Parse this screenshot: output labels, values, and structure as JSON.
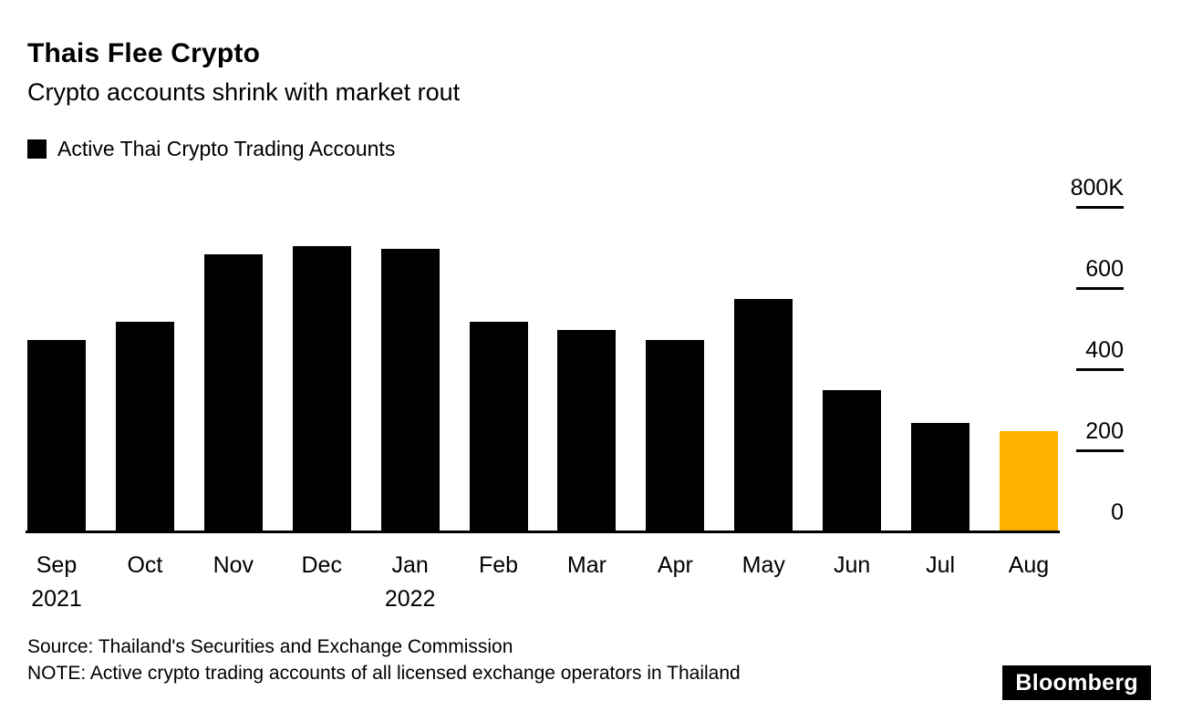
{
  "header": {
    "title": "Thais Flee Crypto",
    "subtitle": "Crypto accounts shrink with market rout"
  },
  "legend": {
    "label": "Active Thai Crypto Trading Accounts",
    "swatch_color": "#000000"
  },
  "chart_data": {
    "type": "bar",
    "title": "Thais Flee Crypto",
    "subtitle": "Crypto accounts shrink with market rout",
    "series_name": "Active Thai Crypto Trading Accounts",
    "unit": "thousands of accounts",
    "categories": [
      "Sep",
      "Oct",
      "Nov",
      "Dec",
      "Jan",
      "Feb",
      "Mar",
      "Apr",
      "May",
      "Jun",
      "Jul",
      "Aug"
    ],
    "category_sublabels": [
      "2021",
      "",
      "",
      "",
      "2022",
      "",
      "",
      "",
      "",
      "",
      "",
      ""
    ],
    "values": [
      470,
      515,
      680,
      700,
      695,
      515,
      495,
      470,
      570,
      345,
      265,
      245
    ],
    "ylim": [
      0,
      800
    ],
    "y_ticks": [
      {
        "label": "800K",
        "value": 800,
        "dash": true
      },
      {
        "label": "600",
        "value": 600,
        "dash": true
      },
      {
        "label": "400",
        "value": 400,
        "dash": true
      },
      {
        "label": "200",
        "value": 200,
        "dash": true
      },
      {
        "label": "0",
        "value": 0,
        "dash": false
      }
    ],
    "bar_color": "#000000",
    "highlight_index": 11,
    "highlight_color": "#FFB300",
    "legend_position": "top-left",
    "grid": false
  },
  "footer": {
    "source": "Source: Thailand's Securities and Exchange Commission",
    "note": "NOTE: Active crypto trading accounts of all licensed exchange operators in Thailand",
    "brand": "Bloomberg"
  }
}
